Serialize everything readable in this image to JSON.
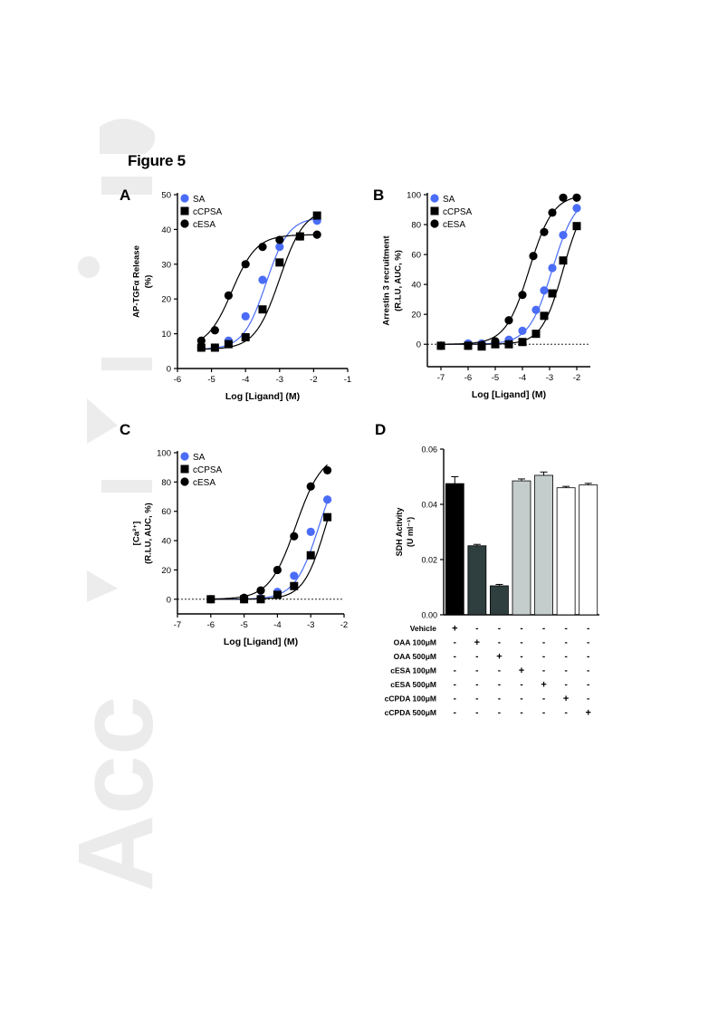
{
  "figure_title": "Figure 5",
  "watermark_text": "Acc",
  "chart_data": [
    {
      "panel": "A",
      "type": "scatter",
      "xlabel": "Log [Ligand] (M)",
      "ylabel_lines": [
        "AP-TGFα Release",
        "(%)"
      ],
      "xlim": [
        -6,
        -1
      ],
      "ylim": [
        0,
        50
      ],
      "xticks": [
        -6,
        -5,
        -4,
        -3,
        -2,
        -1
      ],
      "yticks": [
        0,
        10,
        20,
        30,
        40,
        50
      ],
      "legend_position": "top-left",
      "series": [
        {
          "name": "SA",
          "color": "#4a6cf7",
          "marker": "circle",
          "x": [
            -5.3,
            -4.9,
            -4.5,
            -4.0,
            -3.5,
            -3.0,
            -2.4,
            -1.9
          ],
          "y": [
            6,
            6,
            8,
            15,
            25.5,
            35,
            38,
            42.5
          ],
          "fit": {
            "bottom": 5.5,
            "top": 43.5,
            "logec50": -3.4,
            "hill": 1.3
          }
        },
        {
          "name": "cCPSA",
          "color": "#000000",
          "marker": "square",
          "x": [
            -5.3,
            -4.9,
            -4.5,
            -4.0,
            -3.5,
            -3.0,
            -2.4,
            -1.9
          ],
          "y": [
            6,
            6,
            7,
            9,
            17,
            30.5,
            38,
            44
          ],
          "fit": {
            "bottom": 5.5,
            "top": 46,
            "logec50": -3.0,
            "hill": 1.2
          }
        },
        {
          "name": "cESA",
          "color": "#000000",
          "marker": "circle",
          "x": [
            -5.3,
            -4.9,
            -4.5,
            -4.0,
            -3.5,
            -3.0,
            -2.4,
            -1.9
          ],
          "y": [
            8,
            11,
            21,
            30,
            35,
            37,
            38,
            38.5
          ],
          "fit": {
            "bottom": 6,
            "top": 38.5,
            "logec50": -4.4,
            "hill": 1.2
          }
        }
      ]
    },
    {
      "panel": "B",
      "type": "scatter",
      "xlabel": "Log [Ligand] (M)",
      "ylabel_lines": [
        "Arrestin 3 recruitment",
        "(R.LU, AUC, %)"
      ],
      "xlim": [
        -7.5,
        -1.5
      ],
      "ylim": [
        -15,
        100
      ],
      "xticks": [
        -7,
        -6,
        -5,
        -4,
        -3,
        -2
      ],
      "yticks": [
        0,
        20,
        40,
        60,
        80,
        100
      ],
      "baseline": 0,
      "legend_position": "top-left",
      "series": [
        {
          "name": "SA",
          "color": "#4a6cf7",
          "marker": "circle",
          "x": [
            -7,
            -6,
            -5.5,
            -5,
            -4.5,
            -4,
            -3.5,
            -3.2,
            -2.9,
            -2.5,
            -2
          ],
          "y": [
            -1,
            0.5,
            0.5,
            1,
            3,
            9,
            23,
            36,
            51,
            73,
            91
          ],
          "fit": {
            "bottom": 0,
            "top": 100,
            "logec50": -2.9,
            "hill": 1.0
          }
        },
        {
          "name": "cCPSA",
          "color": "#000000",
          "marker": "square",
          "x": [
            -7,
            -6,
            -5.5,
            -5,
            -4.5,
            -4,
            -3.5,
            -3.2,
            -2.9,
            -2.5,
            -2
          ],
          "y": [
            -1,
            -1,
            -1.5,
            0,
            0,
            1.5,
            7,
            19,
            34,
            56,
            79
          ],
          "fit": {
            "bottom": 0,
            "top": 100,
            "logec50": -2.5,
            "hill": 1.1
          }
        },
        {
          "name": "cESA",
          "color": "#000000",
          "marker": "circle",
          "x": [
            -7,
            -6,
            -5.5,
            -5,
            -4.5,
            -4,
            -3.6,
            -3.2,
            -2.9,
            -2.5,
            -2
          ],
          "y": [
            -1,
            -1,
            -0.5,
            2,
            16,
            33,
            59,
            75,
            88,
            98,
            98
          ],
          "fit": {
            "bottom": 0,
            "top": 100,
            "logec50": -3.75,
            "hill": 1.0
          }
        }
      ]
    },
    {
      "panel": "C",
      "type": "scatter",
      "xlabel": "Log [Ligand] (M)",
      "ylabel_lines": [
        "[Ca²⁺]",
        "(R.LU, AUC, %)"
      ],
      "xlim": [
        -7,
        -2
      ],
      "ylim": [
        -10,
        100
      ],
      "xticks": [
        -7,
        -6,
        -5,
        -4,
        -3,
        -2
      ],
      "yticks": [
        0,
        20,
        40,
        60,
        80,
        100
      ],
      "baseline": 0,
      "legend_position": "top-left",
      "series": [
        {
          "name": "SA",
          "color": "#4a6cf7",
          "marker": "circle",
          "x": [
            -6,
            -5,
            -4.5,
            -4,
            -3.5,
            -3,
            -2.5
          ],
          "y": [
            0,
            0,
            0.5,
            5,
            16,
            46,
            68
          ],
          "fit": {
            "bottom": 0,
            "top": 100,
            "logec50": -2.75,
            "hill": 1.2
          }
        },
        {
          "name": "cCPSA",
          "color": "#000000",
          "marker": "square",
          "x": [
            -6,
            -5,
            -4.5,
            -4,
            -3.5,
            -3,
            -2.5
          ],
          "y": [
            0,
            0,
            0,
            3,
            9,
            30,
            56
          ],
          "fit": {
            "bottom": 0,
            "top": 100,
            "logec50": -2.55,
            "hill": 1.3
          }
        },
        {
          "name": "cESA",
          "color": "#000000",
          "marker": "circle",
          "x": [
            -6,
            -5,
            -4.5,
            -4,
            -3.5,
            -3,
            -2.5
          ],
          "y": [
            0,
            1,
            6,
            20,
            43,
            77,
            88
          ],
          "fit": {
            "bottom": 0,
            "top": 100,
            "logec50": -3.45,
            "hill": 1.1
          }
        }
      ]
    },
    {
      "panel": "D",
      "type": "bar",
      "ylabel_lines": [
        "SDH Activity",
        "(U ml⁻¹)"
      ],
      "ylim": [
        0,
        0.06
      ],
      "yticks": [
        "0.00",
        "0.02",
        "0.04",
        "0.06"
      ],
      "values": [
        0.0475,
        0.025,
        0.0105,
        0.0485,
        0.0505,
        0.046,
        0.047
      ],
      "errors": [
        0.0025,
        0.0005,
        0.0005,
        0.0007,
        0.0012,
        0.0005,
        0.0006
      ],
      "bar_colors": [
        "#000000",
        "#2f3e3e",
        "#2f3e3e",
        "#c4cccc",
        "#c4cccc",
        "#ffffff",
        "#ffffff"
      ],
      "treatment_table": [
        {
          "label": "Vehicle",
          "signs": [
            "+",
            "-",
            "-",
            "-",
            "-",
            "-",
            "-"
          ]
        },
        {
          "label": "OAA 100μM",
          "signs": [
            "-",
            "+",
            "-",
            "-",
            "-",
            "-",
            "-"
          ]
        },
        {
          "label": "OAA 500μM",
          "signs": [
            "-",
            "-",
            "+",
            "-",
            "-",
            "-",
            "-"
          ]
        },
        {
          "label": "cESA 100μM",
          "signs": [
            "-",
            "-",
            "-",
            "+",
            "-",
            "-",
            "-"
          ]
        },
        {
          "label": "cESA 500μM",
          "signs": [
            "-",
            "-",
            "-",
            "-",
            "+",
            "-",
            "-"
          ]
        },
        {
          "label": "cCPDA 100μM",
          "signs": [
            "-",
            "-",
            "-",
            "-",
            "-",
            "+",
            "-"
          ]
        },
        {
          "label": "cCPDA 500μM",
          "signs": [
            "-",
            "-",
            "-",
            "-",
            "-",
            "-",
            "+"
          ]
        }
      ]
    }
  ]
}
